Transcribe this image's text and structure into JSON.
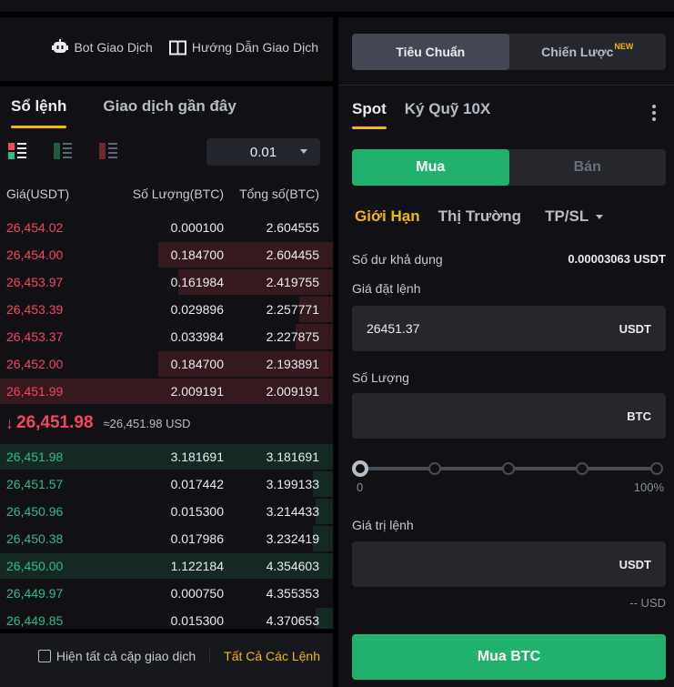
{
  "header": {
    "links": [
      {
        "label": "Bot Giao Dịch",
        "icon": "robot-icon"
      },
      {
        "label": "Hướng Dẫn Giao Dịch",
        "icon": "book-icon"
      }
    ]
  },
  "orderbook": {
    "tabs": [
      {
        "label": "Sổ lệnh",
        "active": true
      },
      {
        "label": "Giao dịch gần đây",
        "active": false
      }
    ],
    "view_icons": [
      "both-sides-icon",
      "bids-only-icon",
      "asks-only-icon"
    ],
    "precision": "0.01",
    "columns": {
      "price": "Giá(USDT)",
      "qty": "Số Lượng(BTC)",
      "total": "Tổng số(BTC)"
    },
    "asks": [
      {
        "price": "26,454.02",
        "qty": "0.000100",
        "total": "2.604555",
        "depth": 0
      },
      {
        "price": "26,454.00",
        "qty": "0.184700",
        "total": "2.604455",
        "depth": 52
      },
      {
        "price": "26,453.97",
        "qty": "0.161984",
        "total": "2.419755",
        "depth": 46
      },
      {
        "price": "26,453.39",
        "qty": "0.029896",
        "total": "2.257771",
        "depth": 10
      },
      {
        "price": "26,453.37",
        "qty": "0.033984",
        "total": "2.227875",
        "depth": 11
      },
      {
        "price": "26,452.00",
        "qty": "0.184700",
        "total": "2.193891",
        "depth": 52
      },
      {
        "price": "26,451.99",
        "qty": "2.009191",
        "total": "2.009191",
        "depth": 100
      }
    ],
    "mid": {
      "arrow": "↓",
      "last_price": "26,451.98",
      "usd": "≈26,451.98 USD"
    },
    "bids": [
      {
        "price": "26,451.98",
        "qty": "3.181691",
        "total": "3.181691",
        "depth": 100
      },
      {
        "price": "26,451.57",
        "qty": "0.017442",
        "total": "3.199133",
        "depth": 6
      },
      {
        "price": "26,450.96",
        "qty": "0.015300",
        "total": "3.214433",
        "depth": 5
      },
      {
        "price": "26,450.38",
        "qty": "0.017986",
        "total": "3.232419",
        "depth": 6
      },
      {
        "price": "26,450.00",
        "qty": "1.122184",
        "total": "4.354603",
        "depth": 100
      },
      {
        "price": "26,449.97",
        "qty": "0.000750",
        "total": "4.355353",
        "depth": 0
      },
      {
        "price": "26,449.85",
        "qty": "0.015300",
        "total": "4.370653",
        "depth": 5
      }
    ]
  },
  "footer": {
    "show_all_pairs": "Hiện tất cả cặp giao dịch",
    "show_all_checked": false,
    "all_orders": "Tất Cả Các Lệnh"
  },
  "trade": {
    "segments": [
      {
        "label": "Tiêu Chuẩn",
        "active": true
      },
      {
        "label": "Chiến Lược",
        "badge": "NEW",
        "active": false
      }
    ],
    "modes": [
      {
        "label": "Spot",
        "active": true
      },
      {
        "label": "Ký Quỹ 10X",
        "active": false
      }
    ],
    "sides": {
      "buy": "Mua",
      "sell": "Bán"
    },
    "order_types": {
      "limit": "Giới Hạn",
      "market": "Thị Trường",
      "tpsl": "TP/SL"
    },
    "available_label": "Số dư khả dụng",
    "available_value": "0.00003063 USDT",
    "price_label": "Giá đặt lệnh",
    "price_value": "26451.37",
    "price_unit": "USDT",
    "qty_label": "Số Lượng",
    "qty_value": "",
    "qty_unit": "BTC",
    "slider": {
      "min_label": "0",
      "max_label": "100%",
      "value": 0
    },
    "total_label": "Giá trị lệnh",
    "total_value": "",
    "total_unit": "USDT",
    "usd_note": "-- USD",
    "submit": "Mua BTC"
  },
  "colors": {
    "accent": "#f0b90b",
    "buy": "#20b26c",
    "ask_text": "#f6465d",
    "bid_text": "#2ebd85",
    "background": "#101015"
  }
}
